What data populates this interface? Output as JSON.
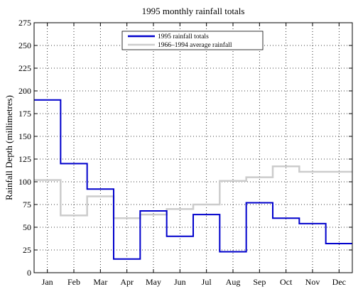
{
  "chart_data": {
    "type": "line",
    "step": true,
    "title": "1995 monthly rainfall totals",
    "xlabel": "",
    "ylabel": "Rainfall Depth (millimetres)",
    "categories": [
      "Jan",
      "Feb",
      "Mar",
      "Apr",
      "May",
      "Jun",
      "Jul",
      "Aug",
      "Sep",
      "Oct",
      "Nov",
      "Dec"
    ],
    "ylim": [
      0,
      275
    ],
    "yticks": [
      0,
      25,
      50,
      75,
      100,
      125,
      150,
      175,
      200,
      225,
      250,
      275
    ],
    "grid": true,
    "legend_position": "top-center",
    "series": [
      {
        "name": "1995 rainfall totals",
        "color": "#0000cc",
        "values": [
          190,
          120,
          92,
          15,
          68,
          40,
          64,
          23,
          77,
          60,
          54,
          32
        ]
      },
      {
        "name": "1966–1994 average rainfall",
        "color": "#cccccc",
        "values": [
          102,
          63,
          84,
          60,
          64,
          70,
          75,
          101,
          105,
          117,
          111,
          111
        ]
      }
    ]
  }
}
